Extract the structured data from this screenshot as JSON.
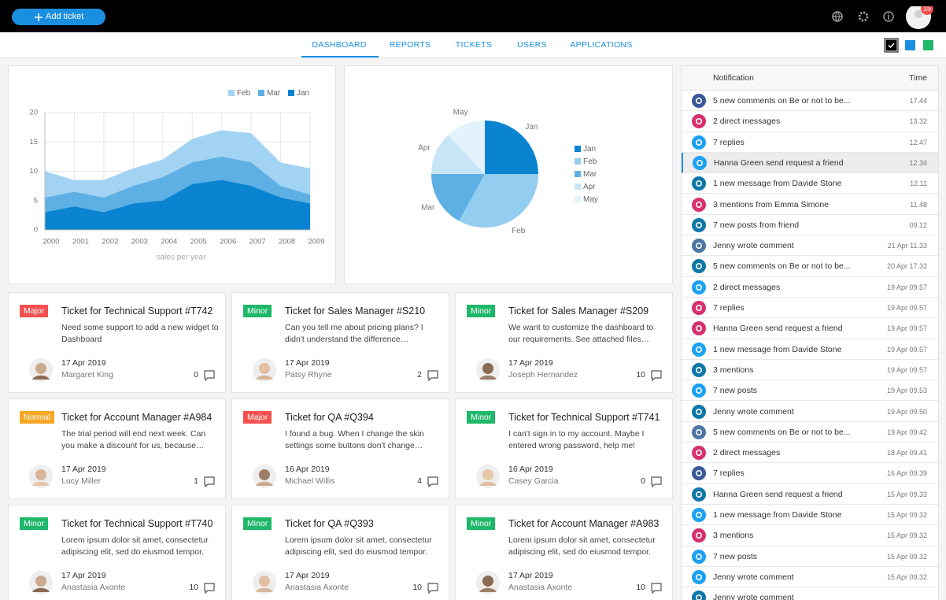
{
  "header": {
    "add_ticket": "Add ticket",
    "notifications_count": 15
  },
  "tabs": [
    "DASHBOARD",
    "REPORTS",
    "TICKETS",
    "USERS",
    "APPLICATIONS"
  ],
  "active_tab": 0,
  "chart_data": [
    {
      "type": "area",
      "x": [
        2000,
        2001,
        2002,
        2003,
        2004,
        2005,
        2006,
        2007,
        2008,
        2009
      ],
      "xlim": [
        2000,
        2009
      ],
      "xticks": [
        2000,
        2001,
        2002,
        2003,
        2004,
        2005,
        2006,
        2007,
        2008,
        2009
      ],
      "ylim": [
        0,
        20
      ],
      "yticks": [
        0,
        5,
        10,
        15,
        20
      ],
      "grid": true,
      "xlabel": "sales per year",
      "series": [
        {
          "name": "Feb",
          "color": "#a3d3f2",
          "values": [
            10,
            8.5,
            8.5,
            10.5,
            12,
            15.5,
            17,
            16.5,
            11.5,
            10.5
          ]
        },
        {
          "name": "Mar",
          "color": "#5eb0e4",
          "values": [
            5.5,
            6.5,
            5.5,
            7.5,
            9,
            11.5,
            12.5,
            11.5,
            7.5,
            6
          ]
        },
        {
          "name": "Jan",
          "color": "#0a84d0",
          "values": [
            3,
            4,
            3,
            4.5,
            5,
            7.8,
            8.5,
            7.5,
            5.5,
            4.5
          ]
        }
      ]
    },
    {
      "type": "pie",
      "categories": [
        "Jan",
        "Feb",
        "Mar",
        "Apr",
        "May"
      ],
      "values": [
        25,
        33,
        17,
        13,
        12
      ],
      "colors": [
        "#0a84d0",
        "#93cdf0",
        "#5eb0e4",
        "#c8e5f7",
        "#e4f2fb"
      ]
    }
  ],
  "tickets": [
    {
      "tag": "Major",
      "tag_color": "#f5504f",
      "title": "Ticket for Technical Support #T742",
      "text": "Need some support to add a new widget to Dashboard",
      "date": "17 Apr 2019",
      "author": "Margaret King",
      "comments": 0
    },
    {
      "tag": "Minor",
      "tag_color": "#1fb86a",
      "title": "Ticket for Sales Manager #S210",
      "text": "Can you tell me about pricing plans? I didn't understand the difference…",
      "date": "17 Apr 2019",
      "author": "Patsy Rhyne",
      "comments": 2
    },
    {
      "tag": "Minor",
      "tag_color": "#1fb86a",
      "title": "Ticket for Sales Manager #S209",
      "text": "We want to customize the dashboard to our requirements. See attached files…",
      "date": "17 Apr 2019",
      "author": "Joseph Hernandez",
      "comments": 10
    },
    {
      "tag": "Normal",
      "tag_color": "#f7a726",
      "title": "Ticket for Account Manager #A984",
      "text": "The trial period will end next week. Can you make a discount for us, because…",
      "date": "17 Apr 2019",
      "author": "Lucy Miller",
      "comments": 1
    },
    {
      "tag": "Major",
      "tag_color": "#f5504f",
      "title": "Ticket for QA #Q394",
      "text": "I found a bug. When I change the skin settings some buttons don't change…",
      "date": "16 Apr 2019",
      "author": "Michael Willis",
      "comments": 4
    },
    {
      "tag": "Minor",
      "tag_color": "#1fb86a",
      "title": "Ticket for Technical Support #T741",
      "text": "I can't sign in to my account. Maybe I entered wrong password, help me!",
      "date": "16 Apr 2019",
      "author": "Casey Garcia",
      "comments": 0
    },
    {
      "tag": "Minor",
      "tag_color": "#1fb86a",
      "title": "Ticket for Technical Support #T740",
      "text": "Lorem ipsum dolor sit amet, consectetur adipiscing elit, sed do eiusmod tempor.",
      "date": "17 Apr 2019",
      "author": "Anastasia Axonte",
      "comments": 10
    },
    {
      "tag": "Minor",
      "tag_color": "#1fb86a",
      "title": "Ticket for QA #Q393",
      "text": "Lorem ipsum dolor sit amet, consectetur adipiscing elit, sed do eiusmod tempor.",
      "date": "17 Apr 2019",
      "author": "Anastasia Axonte",
      "comments": 10
    },
    {
      "tag": "Minor",
      "tag_color": "#1fb86a",
      "title": "Ticket for Account Manager #A983",
      "text": "Lorem ipsum dolor sit amet, consectetur adipiscing elit, sed do eiusmod tempor.",
      "date": "17 Apr 2019",
      "author": "Anastasia Axonte",
      "comments": 10
    }
  ],
  "notifications": {
    "columns": [
      "Notification",
      "Time"
    ],
    "rows": [
      {
        "color": "#3b5998",
        "text": "5 new comments on Be or not to be...",
        "time": "17.44"
      },
      {
        "color": "#d6306f",
        "text": "2 direct messages",
        "time": "13.32"
      },
      {
        "color": "#1da1f2",
        "text": "7 replies",
        "time": "12.47"
      },
      {
        "color": "#1da1f2",
        "text": "Hanna Green send request a friend",
        "time": "12.34"
      },
      {
        "color": "#0e76a8",
        "text": "1 new message from Davide Stone",
        "time": "12.11"
      },
      {
        "color": "#d6306f",
        "text": "3 mentions from Emma Simone",
        "time": "11.48"
      },
      {
        "color": "#0e76a8",
        "text": "7 new posts from friend",
        "time": "09.12"
      },
      {
        "color": "#4c75a3",
        "text": "Jenny wrote comment",
        "time": "21 Apr 11.33"
      },
      {
        "color": "#0e76a8",
        "text": "5 new comments on Be or not to be...",
        "time": "20 Apr 17.32"
      },
      {
        "color": "#1da1f2",
        "text": "2 direct messages",
        "time": "19 Apr 09.57"
      },
      {
        "color": "#d6306f",
        "text": "7 replies",
        "time": "19 Apr 09.57"
      },
      {
        "color": "#d6306f",
        "text": "Hanna Green send request a friend",
        "time": "19 Apr 09.57"
      },
      {
        "color": "#1da1f2",
        "text": "1 new message from Davide Stone",
        "time": "19 Apr 09.57"
      },
      {
        "color": "#0e76a8",
        "text": "3 mentions",
        "time": "19 Apr 09.57"
      },
      {
        "color": "#1da1f2",
        "text": "7 new posts",
        "time": "19 Apr 09.53"
      },
      {
        "color": "#0e76a8",
        "text": "Jenny wrote comment",
        "time": "19 Apr 09.50"
      },
      {
        "color": "#4c75a3",
        "text": "5 new comments on Be or not to be...",
        "time": "19 Apr 09.42"
      },
      {
        "color": "#d6306f",
        "text": "2 direct messages",
        "time": "18 Apr 09.41"
      },
      {
        "color": "#3b5998",
        "text": "7 replies",
        "time": "16 Apr 09.39"
      },
      {
        "color": "#0e76a8",
        "text": "Hanna Green send request a friend",
        "time": "15 Apr 09.33"
      },
      {
        "color": "#1da1f2",
        "text": "1 new message from Davide Stone",
        "time": "15 Apr 09.32"
      },
      {
        "color": "#d6306f",
        "text": "3 mentions",
        "time": "15 Apr 09.32"
      },
      {
        "color": "#1da1f2",
        "text": "7 new posts",
        "time": "15 Apr 09.32"
      },
      {
        "color": "#1da1f2",
        "text": "Jenny wrote comment",
        "time": "15 Apr 09.32"
      },
      {
        "color": "#0e76a8",
        "text": "Jenny wrote comment"
      }
    ],
    "highlight": 3
  }
}
